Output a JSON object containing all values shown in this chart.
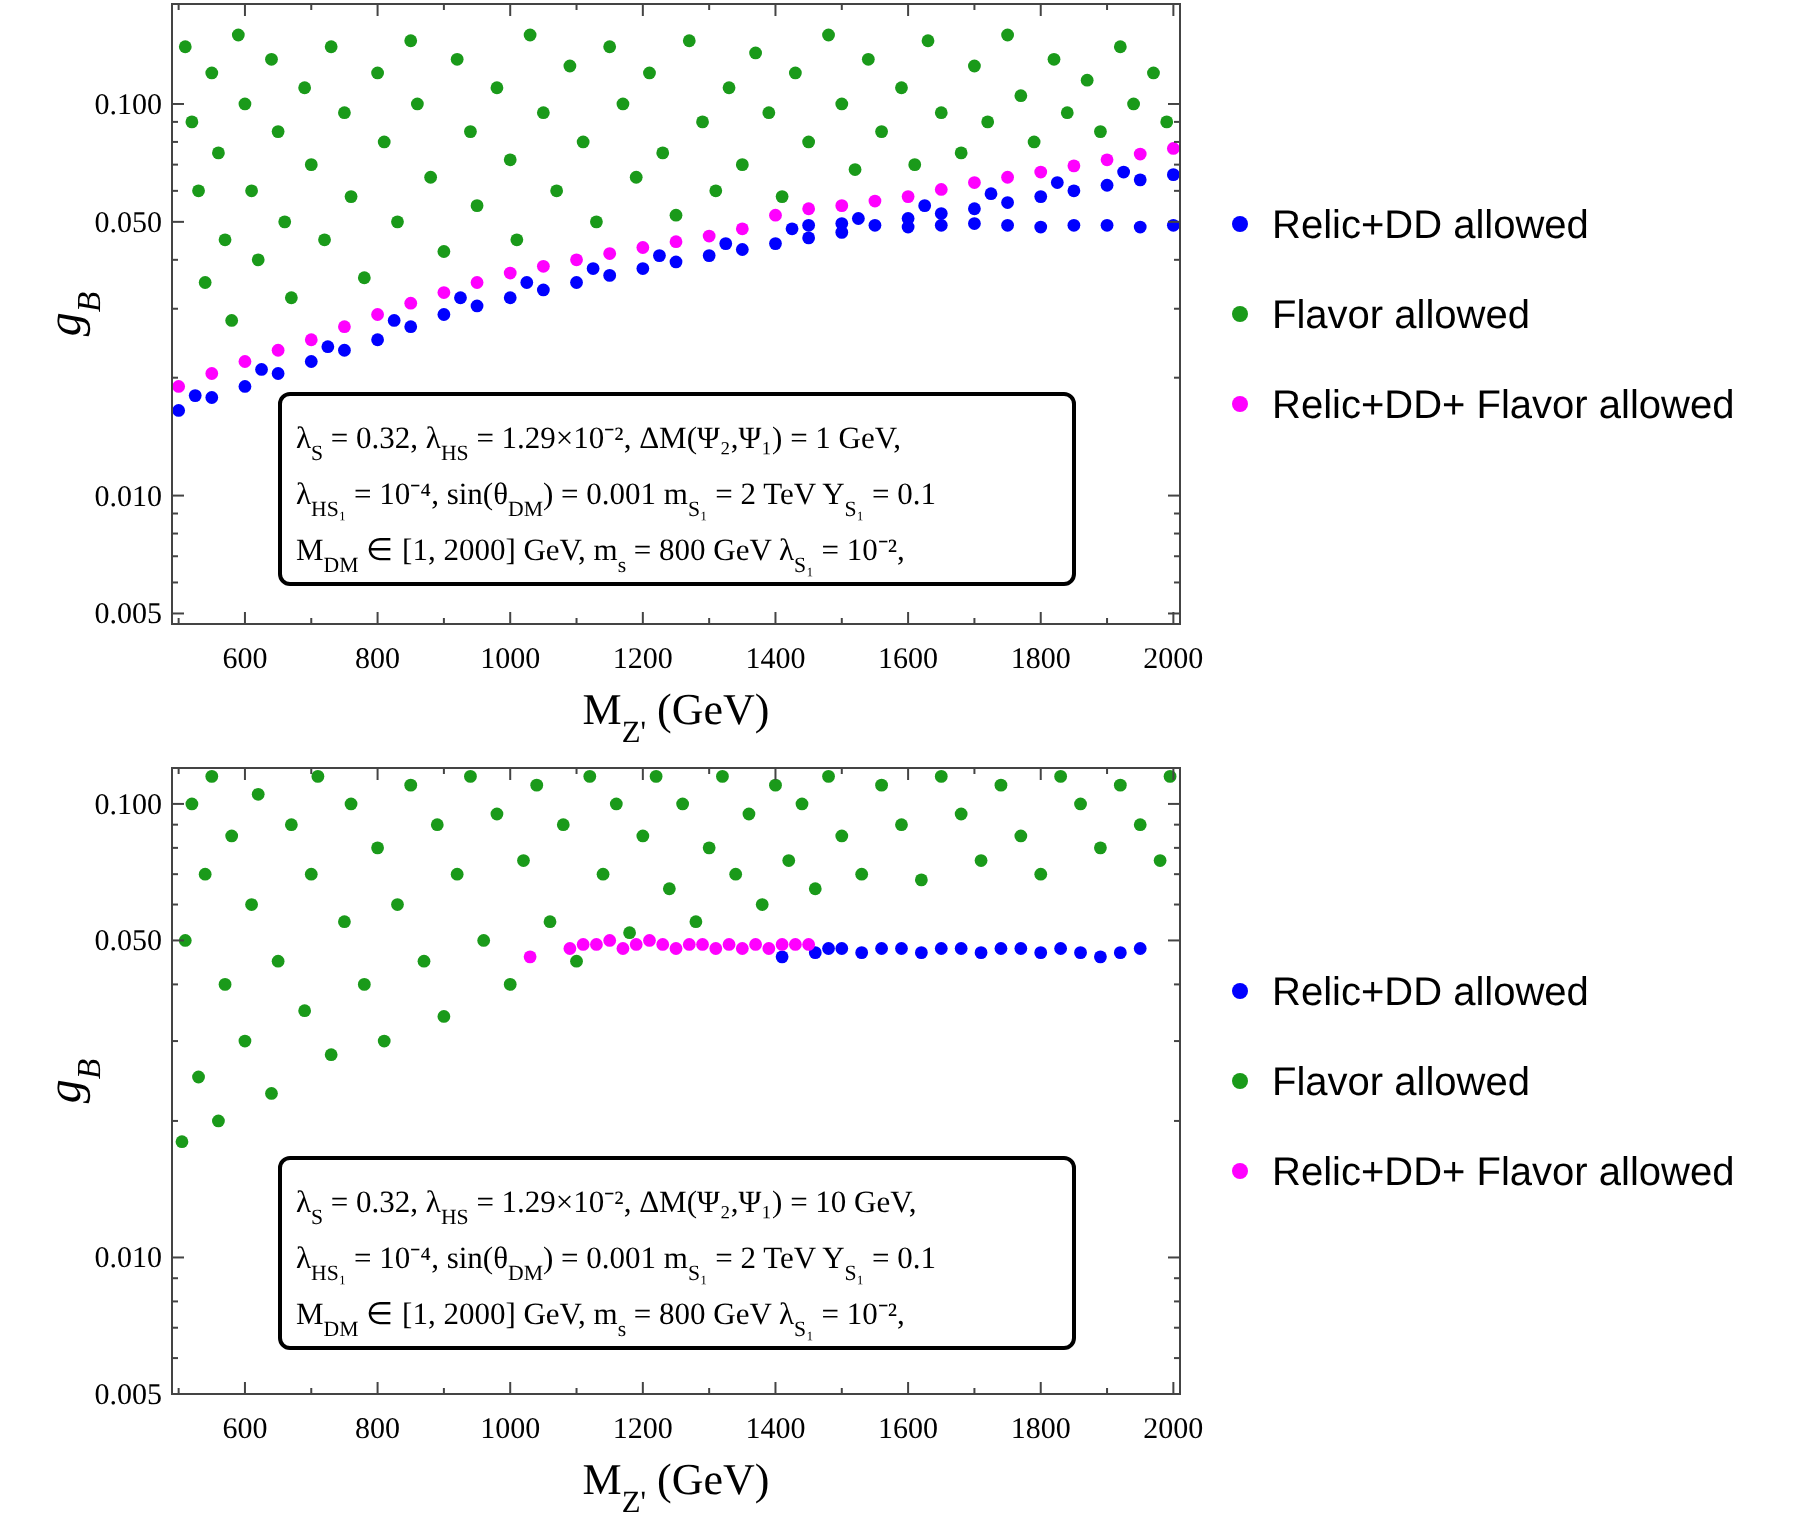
{
  "chart_data": [
    {
      "type": "scatter",
      "xlabel": "M$_{Z'}$ (GeV)",
      "ylabel": "g$_{B}$",
      "log": "y",
      "marker": "circle",
      "legend": "right",
      "xlim": [
        490,
        2010
      ],
      "ylim": [
        0.0047,
        0.18
      ],
      "xticks": [
        600,
        800,
        1000,
        1200,
        1400,
        1600,
        1800,
        2000,
        {
          "value": 500,
          "label": null
        },
        {
          "value": 700,
          "label": null
        },
        {
          "value": 900,
          "label": null
        },
        {
          "value": 1100,
          "label": null
        },
        {
          "value": 1300,
          "label": null
        },
        {
          "value": 1500,
          "label": null
        },
        {
          "value": 1700,
          "label": null
        },
        {
          "value": 1900,
          "label": null
        }
      ],
      "yticks": [
        {
          "value": 0.005,
          "label": "0.005"
        },
        {
          "value": 0.01,
          "label": "0.010"
        },
        {
          "value": 0.05,
          "label": "0.050"
        },
        {
          "value": 0.1,
          "label": "0.100"
        },
        {
          "value": 0.006,
          "label": null
        },
        {
          "value": 0.007,
          "label": null
        },
        {
          "value": 0.008,
          "label": null
        },
        {
          "value": 0.009,
          "label": null
        },
        {
          "value": 0.02,
          "label": null
        },
        {
          "value": 0.03,
          "label": null
        },
        {
          "value": 0.04,
          "label": null
        },
        {
          "value": 0.06,
          "label": null
        },
        {
          "value": 0.07,
          "label": null
        },
        {
          "value": 0.08,
          "label": null
        },
        {
          "value": 0.09,
          "label": null
        }
      ],
      "annotations": [
        "λ$_{S}$ = 0.32,   λ$_{HS}$ = 1.29×10⁻²,   ΔM(Ψ₂,Ψ₁) = 1 GeV,",
        "λ$_{HS₁}$ = 10⁻⁴,   sin(θ$_{DM}$) = 0.001   m$_{S₁}$ = 2 TeV Y$_{S₁}$ = 0.1",
        "M$_{DM}$ ∈ [1, 2000] GeV,   m$_{s}$ = 800 GeV λ$_{S₁}$ = 10⁻²,"
      ],
      "series": [
        {
          "name": "Relic+DD allowed",
          "color": "#0000ff",
          "x": [
            500,
            550,
            600,
            650,
            700,
            750,
            800,
            850,
            900,
            950,
            1000,
            1050,
            1100,
            1150,
            1200,
            1250,
            1300,
            1350,
            1400,
            1450,
            1500,
            1550,
            1600,
            1650,
            1700,
            1750,
            1800,
            1850,
            1900,
            1950,
            2000,
            525,
            625,
            725,
            825,
            925,
            1025,
            1125,
            1225,
            1325,
            1425,
            1525,
            1625,
            1725,
            1825,
            1925,
            1450,
            1500,
            1600,
            1650,
            1700,
            1750,
            1800,
            1850,
            1900,
            1950,
            2000
          ],
          "values": [
            0.0165,
            0.0178,
            0.019,
            0.0205,
            0.022,
            0.0235,
            0.025,
            0.027,
            0.029,
            0.0305,
            0.032,
            0.0335,
            0.035,
            0.0365,
            0.038,
            0.0395,
            0.041,
            0.0425,
            0.044,
            0.0455,
            0.047,
            0.049,
            0.051,
            0.0525,
            0.054,
            0.056,
            0.058,
            0.06,
            0.062,
            0.064,
            0.066,
            0.018,
            0.021,
            0.024,
            0.028,
            0.032,
            0.035,
            0.038,
            0.041,
            0.044,
            0.048,
            0.051,
            0.055,
            0.059,
            0.063,
            0.067,
            0.049,
            0.0495,
            0.0485,
            0.049,
            0.0495,
            0.049,
            0.0485,
            0.049,
            0.049,
            0.0485,
            0.049
          ]
        },
        {
          "name": "Flavor allowed",
          "color": "#1a9a1a",
          "x": [
            510,
            520,
            530,
            540,
            550,
            560,
            570,
            580,
            590,
            600,
            610,
            620,
            640,
            650,
            660,
            670,
            690,
            700,
            720,
            730,
            750,
            760,
            780,
            800,
            810,
            830,
            850,
            860,
            880,
            900,
            920,
            940,
            950,
            980,
            1000,
            1010,
            1030,
            1050,
            1070,
            1090,
            1110,
            1130,
            1150,
            1170,
            1190,
            1210,
            1230,
            1250,
            1270,
            1290,
            1310,
            1330,
            1350,
            1370,
            1390,
            1410,
            1430,
            1450,
            1480,
            1500,
            1520,
            1540,
            1560,
            1590,
            1610,
            1630,
            1650,
            1680,
            1700,
            1720,
            1750,
            1770,
            1790,
            1820,
            1840,
            1870,
            1890,
            1920,
            1940,
            1970,
            1990
          ],
          "values": [
            0.14,
            0.09,
            0.06,
            0.035,
            0.12,
            0.075,
            0.045,
            0.028,
            0.15,
            0.1,
            0.06,
            0.04,
            0.13,
            0.085,
            0.05,
            0.032,
            0.11,
            0.07,
            0.045,
            0.14,
            0.095,
            0.058,
            0.036,
            0.12,
            0.08,
            0.05,
            0.145,
            0.1,
            0.065,
            0.042,
            0.13,
            0.085,
            0.055,
            0.11,
            0.072,
            0.045,
            0.15,
            0.095,
            0.06,
            0.125,
            0.08,
            0.05,
            0.14,
            0.1,
            0.065,
            0.12,
            0.075,
            0.052,
            0.145,
            0.09,
            0.06,
            0.11,
            0.07,
            0.135,
            0.095,
            0.058,
            0.12,
            0.08,
            0.15,
            0.1,
            0.068,
            0.13,
            0.085,
            0.11,
            0.07,
            0.145,
            0.095,
            0.075,
            0.125,
            0.09,
            0.15,
            0.105,
            0.08,
            0.13,
            0.095,
            0.115,
            0.085,
            0.14,
            0.1,
            0.12,
            0.09
          ]
        },
        {
          "name": "Relic+DD+ Flavor allowed",
          "color": "#ff00ff",
          "x": [
            500,
            550,
            600,
            650,
            700,
            750,
            800,
            850,
            900,
            950,
            1000,
            1050,
            1100,
            1150,
            1200,
            1250,
            1300,
            1350,
            1400,
            1450,
            1500,
            1550,
            1600,
            1650,
            1700,
            1750,
            1800,
            1850,
            1900,
            1950,
            2000
          ],
          "values": [
            0.019,
            0.0205,
            0.022,
            0.0235,
            0.025,
            0.027,
            0.029,
            0.031,
            0.033,
            0.035,
            0.037,
            0.0385,
            0.04,
            0.0415,
            0.043,
            0.0445,
            0.046,
            0.048,
            0.052,
            0.054,
            0.055,
            0.0565,
            0.058,
            0.0605,
            0.063,
            0.065,
            0.067,
            0.0695,
            0.072,
            0.0745,
            0.077
          ]
        }
      ]
    },
    {
      "type": "scatter",
      "xlabel": "M$_{Z'}$ (GeV)",
      "ylabel": "g$_{B}$",
      "log": "y",
      "marker": "circle",
      "legend": "right",
      "xlim": [
        490,
        2010
      ],
      "ylim": [
        0.005,
        0.12
      ],
      "xticks": [
        600,
        800,
        1000,
        1200,
        1400,
        1600,
        1800,
        2000,
        {
          "value": 500,
          "label": null
        },
        {
          "value": 700,
          "label": null
        },
        {
          "value": 900,
          "label": null
        },
        {
          "value": 1100,
          "label": null
        },
        {
          "value": 1300,
          "label": null
        },
        {
          "value": 1500,
          "label": null
        },
        {
          "value": 1700,
          "label": null
        },
        {
          "value": 1900,
          "label": null
        }
      ],
      "yticks": [
        {
          "value": 0.005,
          "label": "0.005"
        },
        {
          "value": 0.01,
          "label": "0.010"
        },
        {
          "value": 0.05,
          "label": "0.050"
        },
        {
          "value": 0.1,
          "label": "0.100"
        },
        {
          "value": 0.006,
          "label": null
        },
        {
          "value": 0.007,
          "label": null
        },
        {
          "value": 0.008,
          "label": null
        },
        {
          "value": 0.009,
          "label": null
        },
        {
          "value": 0.02,
          "label": null
        },
        {
          "value": 0.03,
          "label": null
        },
        {
          "value": 0.04,
          "label": null
        },
        {
          "value": 0.06,
          "label": null
        },
        {
          "value": 0.07,
          "label": null
        },
        {
          "value": 0.08,
          "label": null
        },
        {
          "value": 0.09,
          "label": null
        }
      ],
      "annotations": [
        "λ$_{S}$ = 0.32,   λ$_{HS}$ = 1.29×10⁻²,   ΔM(Ψ₂,Ψ₁) = 10 GeV,",
        "λ$_{HS₁}$ = 10⁻⁴,   sin(θ$_{DM}$) = 0.001   m$_{S₁}$ = 2 TeV Y$_{S₁}$ = 0.1",
        "M$_{DM}$ ∈ [1, 2000] GeV,   m$_{s}$ = 800 GeV λ$_{S₁}$ = 10⁻²,"
      ],
      "series": [
        {
          "name": "Relic+DD allowed",
          "color": "#0000ff",
          "x": [
            1410,
            1460,
            1480,
            1500,
            1530,
            1560,
            1590,
            1620,
            1650,
            1680,
            1710,
            1740,
            1770,
            1800,
            1830,
            1860,
            1890,
            1920,
            1950
          ],
          "values": [
            0.046,
            0.047,
            0.048,
            0.048,
            0.047,
            0.048,
            0.048,
            0.047,
            0.048,
            0.048,
            0.047,
            0.048,
            0.048,
            0.047,
            0.048,
            0.047,
            0.046,
            0.047,
            0.048
          ]
        },
        {
          "name": "Flavor allowed",
          "color": "#1a9a1a",
          "x": [
            505,
            510,
            520,
            530,
            540,
            550,
            560,
            570,
            580,
            600,
            610,
            620,
            640,
            650,
            670,
            690,
            700,
            710,
            730,
            750,
            760,
            780,
            800,
            810,
            830,
            850,
            870,
            890,
            900,
            920,
            940,
            960,
            980,
            1000,
            1020,
            1040,
            1060,
            1080,
            1100,
            1120,
            1140,
            1160,
            1180,
            1200,
            1220,
            1240,
            1260,
            1280,
            1300,
            1320,
            1340,
            1360,
            1380,
            1400,
            1420,
            1440,
            1460,
            1480,
            1500,
            1530,
            1560,
            1590,
            1620,
            1650,
            1680,
            1710,
            1740,
            1770,
            1800,
            1830,
            1860,
            1890,
            1920,
            1950,
            1980,
            1995
          ],
          "values": [
            0.018,
            0.05,
            0.1,
            0.025,
            0.07,
            0.115,
            0.02,
            0.04,
            0.085,
            0.03,
            0.06,
            0.105,
            0.023,
            0.045,
            0.09,
            0.035,
            0.07,
            0.115,
            0.028,
            0.055,
            0.1,
            0.04,
            0.08,
            0.03,
            0.06,
            0.11,
            0.045,
            0.09,
            0.034,
            0.07,
            0.115,
            0.05,
            0.095,
            0.04,
            0.075,
            0.11,
            0.055,
            0.09,
            0.045,
            0.115,
            0.07,
            0.1,
            0.052,
            0.085,
            0.115,
            0.065,
            0.1,
            0.055,
            0.08,
            0.115,
            0.07,
            0.095,
            0.06,
            0.11,
            0.075,
            0.1,
            0.065,
            0.115,
            0.085,
            0.07,
            0.11,
            0.09,
            0.068,
            0.115,
            0.095,
            0.075,
            0.11,
            0.085,
            0.07,
            0.115,
            0.1,
            0.08,
            0.11,
            0.09,
            0.075,
            0.115
          ]
        },
        {
          "name": "Relic+DD+ Flavor allowed",
          "color": "#ff00ff",
          "x": [
            1030,
            1090,
            1110,
            1130,
            1150,
            1170,
            1190,
            1210,
            1230,
            1250,
            1270,
            1290,
            1310,
            1330,
            1350,
            1370,
            1390,
            1410,
            1430,
            1450
          ],
          "values": [
            0.046,
            0.048,
            0.049,
            0.049,
            0.05,
            0.048,
            0.049,
            0.05,
            0.049,
            0.048,
            0.049,
            0.049,
            0.048,
            0.049,
            0.048,
            0.049,
            0.048,
            0.049,
            0.049,
            0.049
          ]
        }
      ]
    }
  ]
}
